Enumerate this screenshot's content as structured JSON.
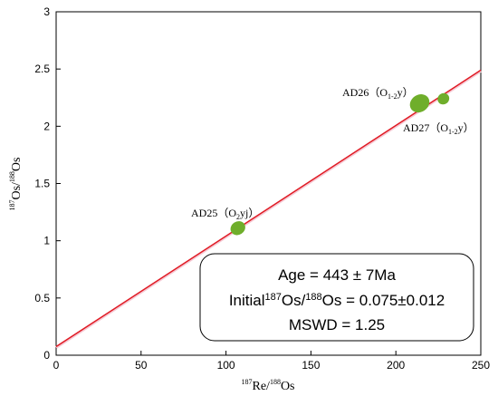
{
  "chart_data": {
    "type": "scatter",
    "title": "",
    "xlabel": {
      "sup": "187",
      "main": "Re/",
      "sup2": "188",
      "main2": "Os"
    },
    "ylabel": {
      "sup": "187",
      "main": "Os/",
      "sup2": "188",
      "main2": "Os"
    },
    "xlim": [
      0,
      250
    ],
    "ylim": [
      0,
      3
    ],
    "x_ticks": [
      "0",
      "50",
      "100",
      "150",
      "200",
      "250"
    ],
    "y_ticks": [
      "0",
      "0.5",
      "1",
      "1.5",
      "2",
      "2.5",
      "3"
    ],
    "grid": false,
    "points": [
      {
        "x": 107,
        "y": 1.11,
        "sx": 4.5,
        "sy": 0.058,
        "label": {
          "pre": "AD25（O",
          "sub": "2",
          "post": "yj）"
        }
      },
      {
        "x": 214,
        "y": 2.2,
        "sx": 6.0,
        "sy": 0.075,
        "label": {
          "pre": "AD26（O",
          "sub": "1-2",
          "post": "y）"
        }
      },
      {
        "x": 228,
        "y": 2.24,
        "sx": 3.5,
        "sy": 0.048,
        "label": {
          "pre": "AD27（O",
          "sub": "1-2",
          "post": "y）"
        }
      }
    ],
    "regression_line": {
      "intercept": 0.075,
      "end_x": 250,
      "end_y": 2.49
    },
    "annotation": {
      "age_line": "Age = 443 ± 7Ma",
      "initial_prefix": "Initial",
      "initial_sup1": "187",
      "initial_mid": "Os/",
      "initial_sup2": "188",
      "initial_suffix": "Os = 0.075±0.012",
      "mswd_line": "MSWD = 1.25"
    },
    "colors": {
      "ellipse": "#6fae2b",
      "line": "#e01b24",
      "axis": "#000000"
    }
  }
}
